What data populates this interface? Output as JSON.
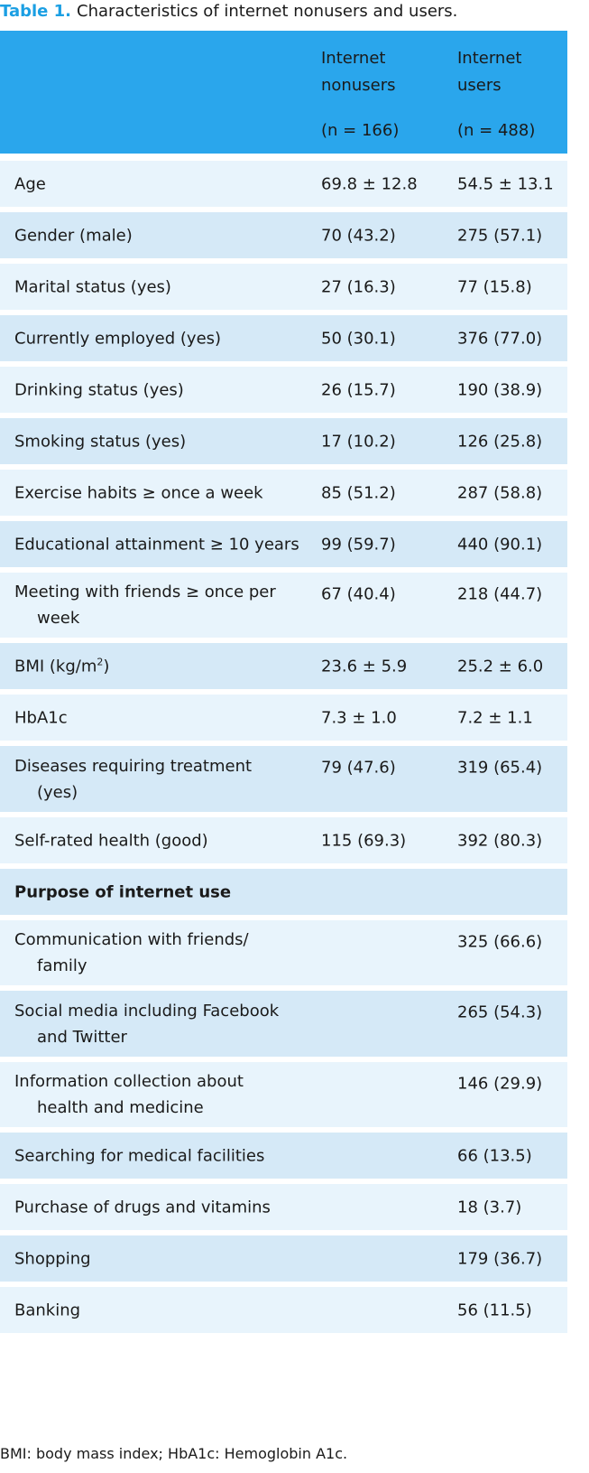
{
  "caption": {
    "number": "Table 1.",
    "text": "Characteristics of internet nonusers and users."
  },
  "header": {
    "col2_line1": "Internet",
    "col2_line2": "nonusers",
    "col2_n": "(n = 166)",
    "col3_line1": "Internet",
    "col3_line2": "users",
    "col3_n": "(n = 488)"
  },
  "rows": [
    {
      "label": "Age",
      "nonusers": "69.8 ± 12.8",
      "users": "54.5 ± 13.1"
    },
    {
      "label": "Gender (male)",
      "nonusers": "70 (43.2)",
      "users": "275 (57.1)"
    },
    {
      "label": "Marital status (yes)",
      "nonusers": "27 (16.3)",
      "users": "77 (15.8)"
    },
    {
      "label": "Currently employed (yes)",
      "nonusers": "50 (30.1)",
      "users": "376 (77.0)"
    },
    {
      "label": "Drinking status (yes)",
      "nonusers": "26 (15.7)",
      "users": "190 (38.9)"
    },
    {
      "label": "Smoking status (yes)",
      "nonusers": "17 (10.2)",
      "users": "126 (25.8)"
    },
    {
      "label": "Exercise habits ≥ once a week",
      "nonusers": "85 (51.2)",
      "users": "287 (58.8)"
    },
    {
      "label": "Educational attainment ≥ 10 years",
      "nonusers": "99 (59.7)",
      "users": "440 (90.1)"
    },
    {
      "label_line1": "Meeting with friends ≥ once per",
      "label_line2": "week",
      "nonusers": "67 (40.4)",
      "users": "218 (44.7)"
    },
    {
      "label": "BMI (kg/m",
      "label_sup": "2",
      "label_end": ")",
      "nonusers": "23.6 ± 5.9",
      "users": "25.2 ± 6.0"
    },
    {
      "label": "HbA1c",
      "nonusers": "7.3 ± 1.0",
      "users": "7.2 ± 1.1"
    },
    {
      "label_line1": "Diseases requiring treatment",
      "label_line2": "(yes)",
      "nonusers": "79 (47.6)",
      "users": "319 (65.4)"
    },
    {
      "label": "Self-rated health (good)",
      "nonusers": "115 (69.3)",
      "users": "392 (80.3)"
    },
    {
      "label": "Purpose of internet use"
    },
    {
      "label_line1": "Communication with friends/",
      "label_line2": "family",
      "users": "325 (66.6)"
    },
    {
      "label_line1": "Social media including Facebook",
      "label_line2": "and Twitter",
      "users": "265 (54.3)"
    },
    {
      "label_line1": "Information collection about",
      "label_line2": "health and medicine",
      "users": "146 (29.9)"
    },
    {
      "label": "Searching for medical facilities",
      "users": "66 (13.5)"
    },
    {
      "label": "Purchase of drugs and vitamins",
      "users": "18 (3.7)"
    },
    {
      "label": "Shopping",
      "users": "179 (36.7)"
    },
    {
      "label": "Banking",
      "users": "56 (11.5)"
    }
  ],
  "footnote": "BMI: body mass index; HbA1c: Hemoglobin A1c.",
  "colors": {
    "header_bg": "#2aa6ec",
    "row_light": "#e8f4fc",
    "row_dark": "#d5e9f7",
    "caption_number": "#1b9fe3"
  }
}
